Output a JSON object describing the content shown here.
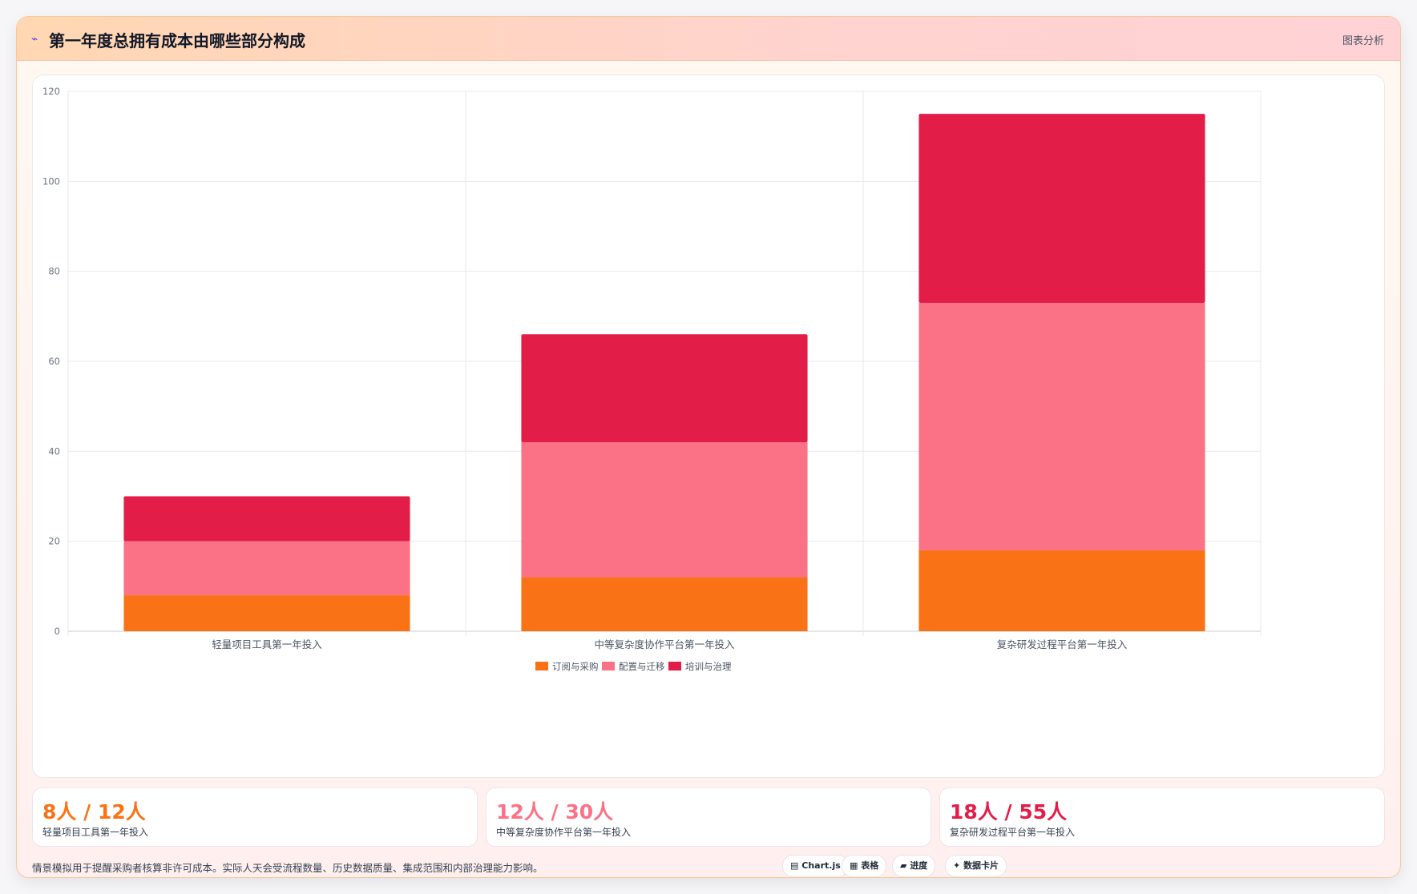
{
  "header": {
    "icon": "chart-icon",
    "title": "第一年度总拥有成本由哪些部分构成",
    "link_label": "图表分析"
  },
  "chart_data": {
    "type": "bar",
    "stacked": true,
    "categories": [
      "轻量项目工具第一年投入",
      "中等复杂度协作平台第一年投入",
      "复杂研发过程平台第一年投入"
    ],
    "series": [
      {
        "name": "订阅与采购",
        "color": "#f97316",
        "values": [
          8,
          12,
          18
        ]
      },
      {
        "name": "配置与迁移",
        "color": "#fb7185",
        "values": [
          12,
          30,
          55
        ]
      },
      {
        "name": "培训与治理",
        "color": "#e11d48",
        "values": [
          10,
          24,
          42
        ]
      }
    ],
    "ylim": [
      0,
      120
    ],
    "yticks": [
      0,
      20,
      40,
      60,
      80,
      100,
      120
    ],
    "grid": true,
    "legend": "bottom"
  },
  "stats": [
    {
      "value": "8人 / 12人",
      "label": "轻量项目工具第一年投入",
      "color": "#f97316"
    },
    {
      "value": "12人 / 30人",
      "label": "中等复杂度协作平台第一年投入",
      "color": "#fb7185"
    },
    {
      "value": "18人 / 55人",
      "label": "复杂研发过程平台第一年投入",
      "color": "#e11d48"
    }
  ],
  "footer": {
    "note": "情景模拟用于提醒采购者核算非许可成本。实际人天会受流程数量、历史数据质量、集成范围和内部治理能力影响。",
    "chips": [
      {
        "icon": "chart-icon",
        "glyph": "▤",
        "label": "Chart.js"
      },
      {
        "icon": "table-icon",
        "glyph": "▦",
        "label": "表格"
      },
      {
        "icon": "progress-icon",
        "glyph": "▰",
        "label": "进度"
      },
      {
        "icon": "card-icon",
        "glyph": "✦",
        "label": "数据卡片"
      }
    ]
  }
}
